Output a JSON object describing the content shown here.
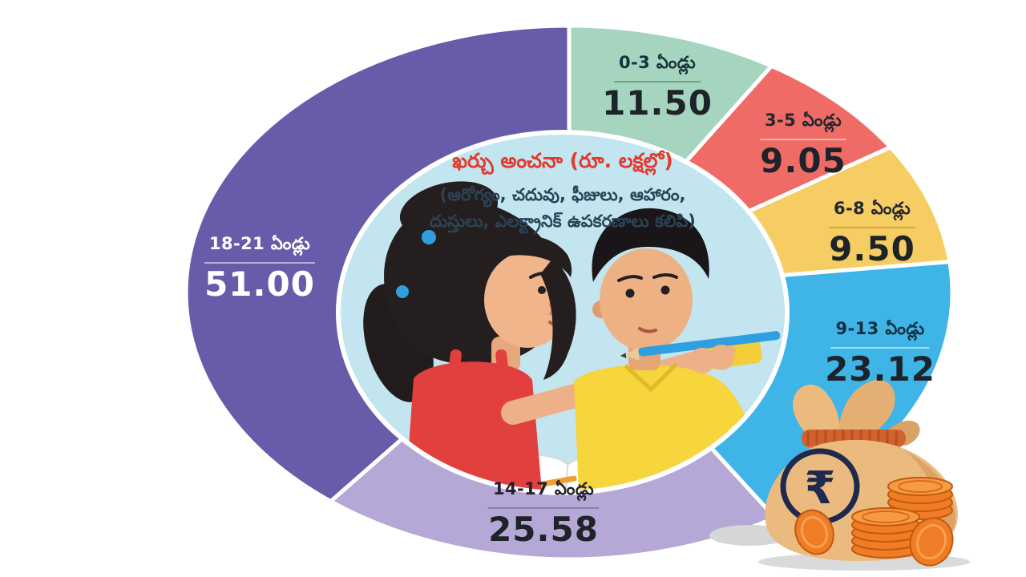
{
  "background_color": "#ffffff",
  "chart_data": {
    "type": "pie",
    "variant": "donut-with-center-photo",
    "title": "ఖర్చు అంచనా (రూ. లక్షల్లో)",
    "subtitle": "(ఆరోగ్యం, చదువు, ఫీజులు, ఆహారం, దుస్తులు, ఎలక్ట్రానిక్ ఉపకరణాలు కలిపి)",
    "start_angle_deg": 0,
    "direction": "clockwise",
    "total": 129.75,
    "legend_position": "labels-on-segments",
    "segments": [
      {
        "label": "0-3 ఏండ్లు",
        "value": 11.5,
        "display": "11.50",
        "color": "#a6d5bf",
        "text_color": "#17323b",
        "rule_color": "rgba(20,70,55,0.35)",
        "value_color": "#1d2329"
      },
      {
        "label": "3-5 ఏండ్లు",
        "value": 9.05,
        "display": "9.05",
        "color": "#ee6b66",
        "text_color": "#23272e",
        "rule_color": "rgba(255,255,255,0.5)",
        "value_color": "#1d2329"
      },
      {
        "label": "6-8 ఏండ్లు",
        "value": 9.5,
        "display": "9.50",
        "color": "#f6cd62",
        "text_color": "#23272e",
        "rule_color": "rgba(130,90,0,0.3)",
        "value_color": "#1d2329"
      },
      {
        "label": "9-13 ఏండ్లు",
        "value": 23.12,
        "display": "23.12",
        "color": "#3fb4e7",
        "text_color": "#10303f",
        "rule_color": "rgba(255,255,255,0.55)",
        "value_color": "#1d2329"
      },
      {
        "label": "14-17 ఏండ్లు",
        "value": 25.58,
        "display": "25.58",
        "color": "#b6a8d6",
        "text_color": "#242031",
        "rule_color": "rgba(45,30,90,0.3)",
        "value_color": "#1d2329"
      },
      {
        "label": "18-21 ఏండ్లు",
        "value": 51.0,
        "display": "51.00",
        "color": "#675caa",
        "text_color": "#ffffff",
        "rule_color": "rgba(255,255,255,0.5)",
        "value_color": "#ffffff"
      }
    ]
  },
  "center": {
    "title": "ఖర్చు అంచనా (రూ. లక్షల్లో)",
    "title_color": "#e23a2e",
    "line1": "(ఆరోగ్యం, చదువు, ఫీజులు, ఆహారం,",
    "line2": "దుస్తులు, ఎలక్ట్రానిక్ ఉపకరణాలు కలిపి)"
  },
  "center_image": {
    "alt": "Two children studying together with books and pencils"
  },
  "icons": {
    "money_bag": "money-bag-with-rupee-and-coins",
    "rupee_symbol": "₹"
  }
}
